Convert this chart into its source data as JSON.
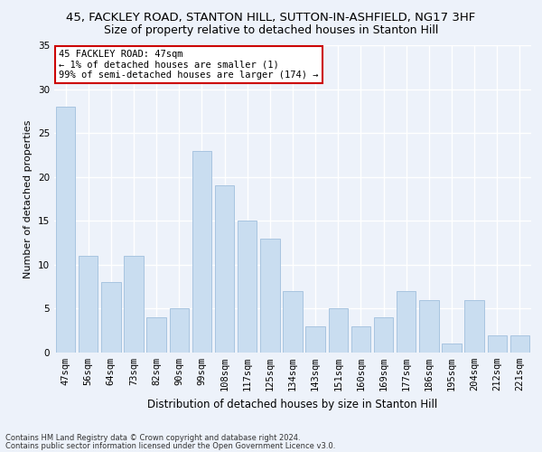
{
  "title_line1": "45, FACKLEY ROAD, STANTON HILL, SUTTON-IN-ASHFIELD, NG17 3HF",
  "title_line2": "Size of property relative to detached houses in Stanton Hill",
  "xlabel": "Distribution of detached houses by size in Stanton Hill",
  "ylabel": "Number of detached properties",
  "categories": [
    "47sqm",
    "56sqm",
    "64sqm",
    "73sqm",
    "82sqm",
    "90sqm",
    "99sqm",
    "108sqm",
    "117sqm",
    "125sqm",
    "134sqm",
    "143sqm",
    "151sqm",
    "160sqm",
    "169sqm",
    "177sqm",
    "186sqm",
    "195sqm",
    "204sqm",
    "212sqm",
    "221sqm"
  ],
  "values": [
    28,
    11,
    8,
    11,
    4,
    5,
    23,
    19,
    15,
    13,
    7,
    3,
    5,
    3,
    4,
    7,
    6,
    1,
    6,
    2,
    2
  ],
  "bar_color": "#c9ddf0",
  "bar_edge_color": "#a8c4e0",
  "ylim": [
    0,
    35
  ],
  "yticks": [
    0,
    5,
    10,
    15,
    20,
    25,
    30,
    35
  ],
  "annotation_text": "45 FACKLEY ROAD: 47sqm\n← 1% of detached houses are smaller (1)\n99% of semi-detached houses are larger (174) →",
  "annotation_box_color": "#ffffff",
  "annotation_box_edge": "#cc0000",
  "footnote1": "Contains HM Land Registry data © Crown copyright and database right 2024.",
  "footnote2": "Contains public sector information licensed under the Open Government Licence v3.0.",
  "background_color": "#edf2fa",
  "grid_color": "#ffffff",
  "title1_fontsize": 9.5,
  "title2_fontsize": 9.0,
  "xlabel_fontsize": 8.5,
  "ylabel_fontsize": 8.0,
  "tick_fontsize": 7.5,
  "annot_fontsize": 7.5,
  "footnote_fontsize": 6.0
}
